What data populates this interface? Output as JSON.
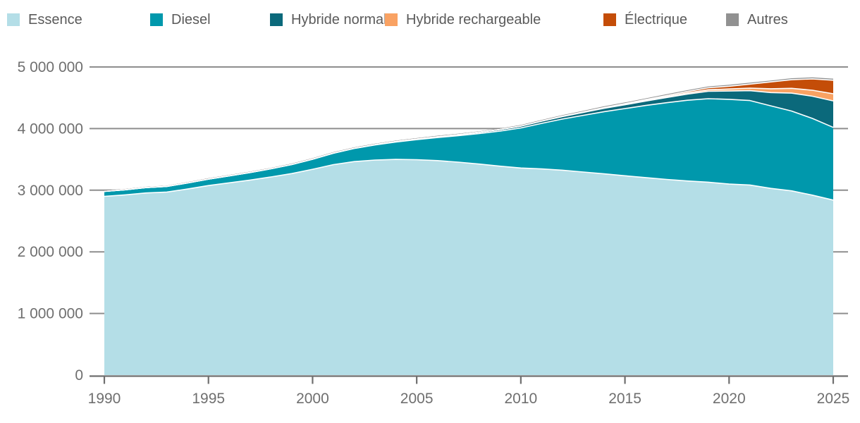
{
  "legend": {
    "items": [
      {
        "label": "Essence",
        "color": "#b4dee7"
      },
      {
        "label": "Diesel",
        "color": "#0098ac"
      },
      {
        "label": "Hybride normal",
        "color": "#0b697b"
      },
      {
        "label": "Hybride rechargeable",
        "color": "#f9a263"
      },
      {
        "label": "Électrique",
        "color": "#c44d08"
      },
      {
        "label": "Autres",
        "color": "#919191"
      }
    ]
  },
  "chart_data": {
    "type": "area",
    "stacked": true,
    "x": [
      1990,
      1991,
      1992,
      1993,
      1994,
      1995,
      1996,
      1997,
      1998,
      1999,
      2000,
      2001,
      2002,
      2003,
      2004,
      2005,
      2006,
      2007,
      2008,
      2009,
      2010,
      2011,
      2012,
      2013,
      2014,
      2015,
      2016,
      2017,
      2018,
      2019,
      2020,
      2021,
      2022,
      2023,
      2024,
      2025
    ],
    "series": [
      {
        "name": "Essence",
        "color": "#b4dee7",
        "values": [
          2900000,
          2925000,
          2955000,
          2970000,
          3020000,
          3075000,
          3120000,
          3165000,
          3215000,
          3270000,
          3340000,
          3415000,
          3465000,
          3490000,
          3500000,
          3495000,
          3480000,
          3455000,
          3425000,
          3390000,
          3360000,
          3345000,
          3325000,
          3295000,
          3265000,
          3235000,
          3205000,
          3175000,
          3150000,
          3130000,
          3100000,
          3085000,
          3030000,
          2990000,
          2920000,
          2840000
        ]
      },
      {
        "name": "Diesel",
        "color": "#0098ac",
        "values": [
          80000,
          82000,
          87000,
          92000,
          98000,
          105000,
          113000,
          122000,
          133000,
          147000,
          163000,
          185000,
          212000,
          245000,
          283000,
          325000,
          375000,
          430000,
          495000,
          570000,
          650000,
          740000,
          830000,
          920000,
          1010000,
          1090000,
          1170000,
          1245000,
          1310000,
          1355000,
          1375000,
          1370000,
          1340000,
          1295000,
          1245000,
          1180000
        ]
      },
      {
        "name": "Hybride normal",
        "color": "#0b697b",
        "values": [
          0,
          0,
          0,
          0,
          0,
          0,
          0,
          0,
          0,
          0,
          1000,
          2000,
          3000,
          5000,
          7000,
          9000,
          12000,
          16000,
          20000,
          25000,
          30000,
          35000,
          41000,
          47000,
          54000,
          62000,
          72000,
          85000,
          100000,
          120000,
          135000,
          160000,
          215000,
          290000,
          360000,
          430000
        ]
      },
      {
        "name": "Hybride rechargeable",
        "color": "#f9a263",
        "values": [
          0,
          0,
          0,
          0,
          0,
          0,
          0,
          0,
          0,
          0,
          0,
          0,
          0,
          0,
          0,
          0,
          0,
          0,
          0,
          0,
          0,
          1000,
          2000,
          3000,
          5000,
          7000,
          10000,
          14000,
          19000,
          25000,
          33000,
          42000,
          62000,
          78000,
          97000,
          115000
        ]
      },
      {
        "name": "Électrique",
        "color": "#c44d08",
        "values": [
          0,
          0,
          0,
          0,
          0,
          0,
          0,
          0,
          0,
          0,
          0,
          0,
          0,
          0,
          0,
          0,
          0,
          0,
          0,
          0,
          1000,
          2000,
          3000,
          5000,
          8000,
          11000,
          14000,
          18000,
          23000,
          32000,
          45000,
          65000,
          110000,
          140000,
          185000,
          220000
        ]
      },
      {
        "name": "Autres",
        "color": "#919191",
        "values": [
          14000,
          14000,
          14000,
          14000,
          14000,
          15000,
          15000,
          15000,
          15000,
          15000,
          16000,
          16000,
          16000,
          16000,
          16000,
          17000,
          17000,
          17000,
          17000,
          17000,
          18000,
          18000,
          18000,
          19000,
          19000,
          20000,
          20000,
          21000,
          21000,
          22000,
          22000,
          23000,
          23000,
          24000,
          24000,
          25000
        ]
      }
    ],
    "ylim": [
      0,
      5000000
    ],
    "yticks": [
      0,
      1000000,
      2000000,
      3000000,
      4000000,
      5000000
    ],
    "ytick_labels": [
      "0",
      "1 000 000",
      "2 000 000",
      "3 000 000",
      "4 000 000",
      "5 000 000"
    ],
    "xticks": [
      1990,
      1995,
      2000,
      2005,
      2010,
      2015,
      2020,
      2025
    ],
    "xtick_labels": [
      "1990",
      "1995",
      "2000",
      "2005",
      "2010",
      "2015",
      "2020",
      "2025"
    ],
    "grid": "horizontal",
    "legend_position": "top",
    "colors": {
      "grid_line": "#8e8e8e",
      "axis_line": "#6f6f6f",
      "tick_label": "#6f6f6f",
      "separator": "#ffffff",
      "background": "#ffffff"
    }
  }
}
